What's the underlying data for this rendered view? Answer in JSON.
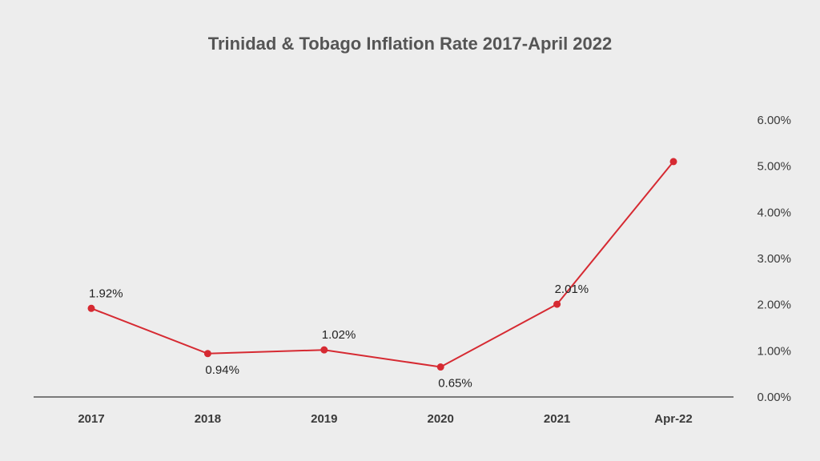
{
  "chart_data": {
    "type": "line",
    "title": "Trinidad & Tobago Inflation Rate 2017-April 2022",
    "xlabel": "",
    "ylabel": "",
    "categories": [
      "2017",
      "2018",
      "2019",
      "2020",
      "2021",
      "Apr-22"
    ],
    "series": [
      {
        "values": [
          1.92,
          0.94,
          1.02,
          0.65,
          2.01,
          5.1
        ]
      }
    ],
    "data_labels": [
      "1.92%",
      "0.94%",
      "1.02%",
      "0.65%",
      "2.01%",
      ""
    ],
    "y_ticks": [
      "0.00%",
      "1.00%",
      "2.00%",
      "3.00%",
      "4.00%",
      "5.00%",
      "6.00%"
    ],
    "ylim": [
      0,
      6
    ],
    "y_axis_side": "right",
    "grid": false,
    "legend": "none",
    "colors": {
      "line": "#d62a32",
      "marker": "#d62a32",
      "baseline": "#555555",
      "background": "#ededed"
    }
  }
}
